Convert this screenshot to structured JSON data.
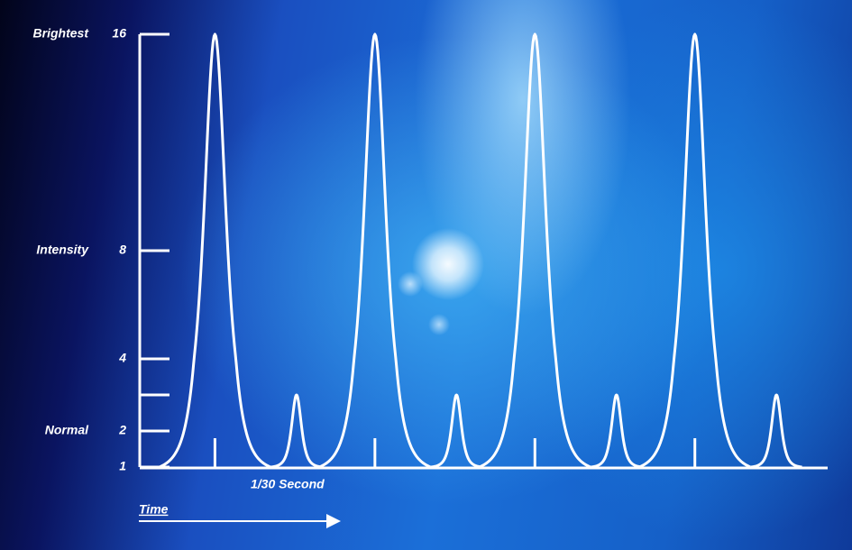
{
  "chart_data": {
    "type": "pulse",
    "ylim": [
      1,
      16
    ],
    "yticks": [
      1,
      2,
      {
        "value": 3
      },
      4,
      8,
      16
    ],
    "y_annotations": [
      {
        "value": 16,
        "text": "Brightest"
      },
      {
        "value": 8,
        "text": "Intensity"
      },
      {
        "value": 2,
        "text": "Normal"
      }
    ],
    "xlim": [
      0,
      4.3
    ],
    "xticks": [
      {
        "value": 0.47
      },
      {
        "value": 1.47
      },
      {
        "value": 2.47
      },
      {
        "value": 3.47
      }
    ],
    "x_annotation": "1/30 Second",
    "xlabel": "Time",
    "x": [
      0.47,
      0.98,
      1.47,
      1.98,
      2.47,
      2.98,
      3.47,
      3.98
    ],
    "values": [
      16,
      3,
      16,
      3,
      16,
      3,
      16,
      3
    ],
    "color": "#ffffff"
  }
}
